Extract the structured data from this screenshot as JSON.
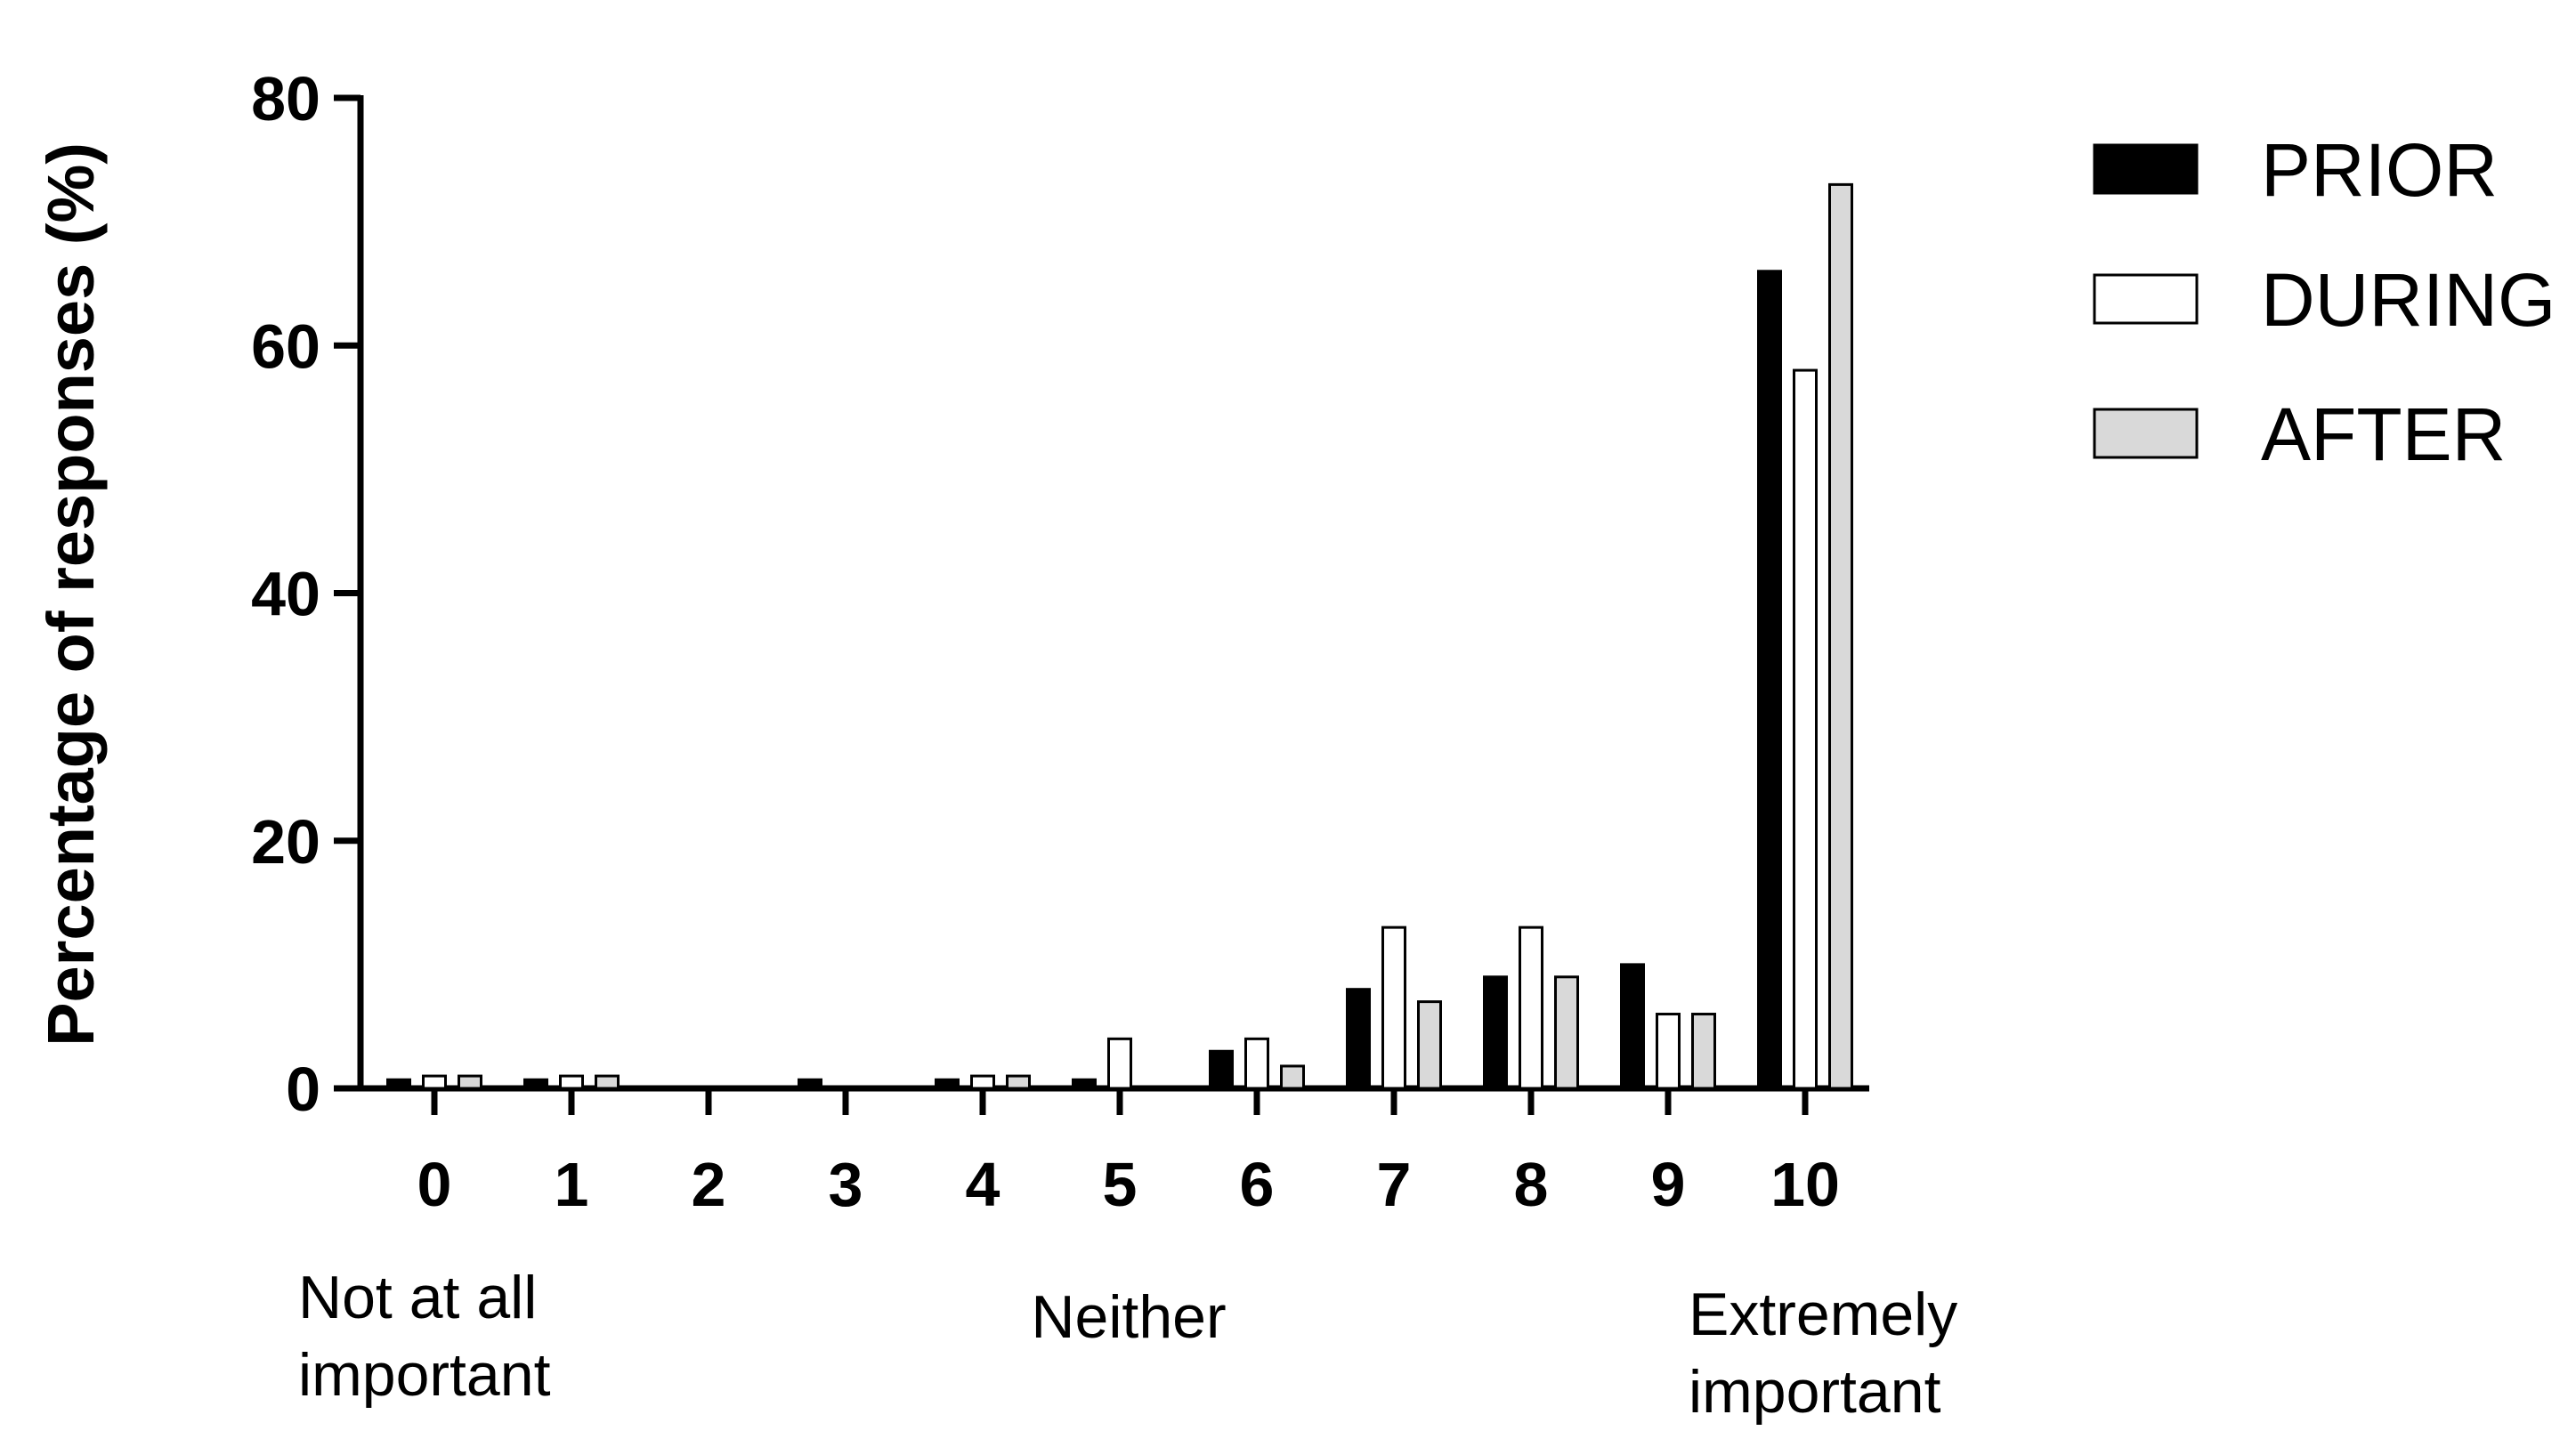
{
  "chart_data": {
    "type": "bar",
    "title": "",
    "xlabel": "",
    "ylabel": "Percentage of responses (%)",
    "ylim": [
      0,
      80
    ],
    "yticks": [
      0,
      20,
      40,
      60,
      80
    ],
    "categories": [
      "0",
      "1",
      "2",
      "3",
      "4",
      "5",
      "6",
      "7",
      "8",
      "9",
      "10"
    ],
    "series": [
      {
        "name": "PRIOR",
        "color": "#000000",
        "values": [
          0.7,
          0.7,
          0,
          0.7,
          0.7,
          0.7,
          3,
          8,
          9,
          10,
          66
        ]
      },
      {
        "name": "DURING",
        "color": "#ffffff",
        "values": [
          1,
          1,
          0,
          0,
          1,
          4,
          4,
          13,
          13,
          6,
          58
        ]
      },
      {
        "name": "AFTER",
        "color": "#d9d9d9",
        "values": [
          1,
          1,
          0,
          0,
          1,
          0,
          1.8,
          7,
          9,
          6,
          73
        ]
      }
    ],
    "category_annotations": [
      {
        "category": "0",
        "lines": [
          "Not at all",
          "important"
        ]
      },
      {
        "category": "5",
        "lines": [
          "Neither"
        ]
      },
      {
        "category": "10",
        "lines": [
          "Extremely",
          "important"
        ]
      }
    ],
    "legend_position": "top-right",
    "grid": false
  }
}
